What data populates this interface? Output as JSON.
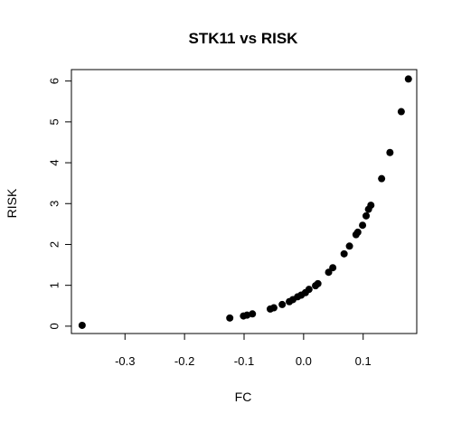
{
  "chart_data": {
    "type": "scatter",
    "title": "STK11 vs RISK",
    "xlabel": "FC",
    "ylabel": "RISK",
    "xlim": [
      -0.39,
      0.19
    ],
    "ylim": [
      -0.18,
      6.28
    ],
    "x_ticks": [
      -0.3,
      -0.2,
      -0.1,
      0.0,
      0.1
    ],
    "x_tick_labels": [
      "-0.3",
      "-0.2",
      "-0.1",
      "0.0",
      "0.1"
    ],
    "y_ticks": [
      0,
      1,
      2,
      3,
      4,
      5,
      6
    ],
    "y_tick_labels": [
      "0",
      "1",
      "2",
      "3",
      "4",
      "5",
      "6"
    ],
    "grid": false,
    "point_color": "#000000",
    "points": [
      {
        "x": -0.372,
        "y": 0.02
      },
      {
        "x": -0.124,
        "y": 0.2
      },
      {
        "x": -0.101,
        "y": 0.25
      },
      {
        "x": -0.095,
        "y": 0.27
      },
      {
        "x": -0.086,
        "y": 0.3
      },
      {
        "x": -0.056,
        "y": 0.42
      },
      {
        "x": -0.05,
        "y": 0.45
      },
      {
        "x": -0.036,
        "y": 0.53
      },
      {
        "x": -0.024,
        "y": 0.6
      },
      {
        "x": -0.018,
        "y": 0.65
      },
      {
        "x": -0.01,
        "y": 0.72
      },
      {
        "x": -0.004,
        "y": 0.76
      },
      {
        "x": 0.003,
        "y": 0.82
      },
      {
        "x": 0.009,
        "y": 0.9
      },
      {
        "x": 0.02,
        "y": 0.99
      },
      {
        "x": 0.024,
        "y": 1.04
      },
      {
        "x": 0.042,
        "y": 1.32
      },
      {
        "x": 0.049,
        "y": 1.43
      },
      {
        "x": 0.068,
        "y": 1.77
      },
      {
        "x": 0.077,
        "y": 1.96
      },
      {
        "x": 0.088,
        "y": 2.24
      },
      {
        "x": 0.091,
        "y": 2.3
      },
      {
        "x": 0.099,
        "y": 2.47
      },
      {
        "x": 0.105,
        "y": 2.7
      },
      {
        "x": 0.109,
        "y": 2.86
      },
      {
        "x": 0.113,
        "y": 2.96
      },
      {
        "x": 0.131,
        "y": 3.61
      },
      {
        "x": 0.145,
        "y": 4.25
      },
      {
        "x": 0.164,
        "y": 5.25
      },
      {
        "x": 0.176,
        "y": 6.05
      }
    ]
  }
}
